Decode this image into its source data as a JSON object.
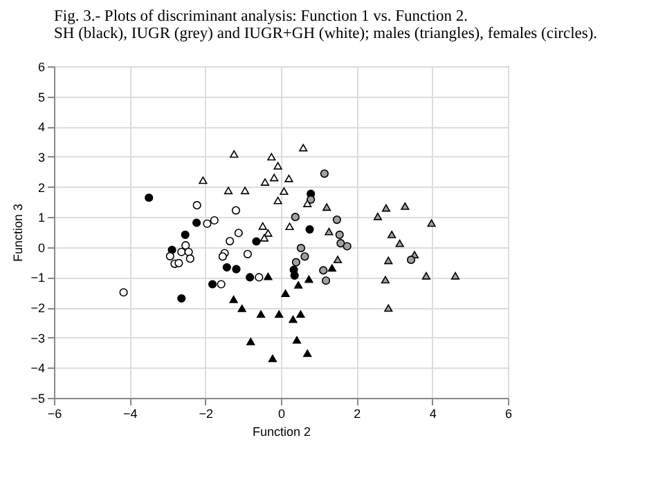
{
  "chart_data": {
    "type": "scatter",
    "title": "Fig. 3.- Plots of discriminant analysis: Function 1 vs. Function 2.",
    "subtitle": "SH (black), IUGR (grey) and IUGR+GH (white); males (triangles), females (circles).",
    "xlabel": "Function 2",
    "ylabel": "Function 3",
    "xlim": [
      -6,
      6
    ],
    "xticks": [
      -6,
      -4,
      -2,
      0,
      2,
      4,
      6
    ],
    "ylim": [
      -5,
      6
    ],
    "yticks": [
      -5,
      -4,
      -3,
      -2,
      -1,
      0,
      1,
      2,
      3,
      4,
      5,
      6
    ],
    "grid": true,
    "series": [
      {
        "color": "#000000",
        "marker": "triangle",
        "x": [
          -0.34,
          -1.25,
          -1.03,
          -0.53,
          -0.05,
          0.32,
          -0.8,
          -0.22,
          0.12,
          0.46,
          0.74,
          1.35,
          0.52,
          0.42,
          0.7
        ],
        "values": [
          -0.97,
          -1.73,
          -2.03,
          -2.22,
          -2.22,
          -2.39,
          -3.13,
          -3.69,
          -1.53,
          -1.25,
          -1.06,
          -0.69,
          -2.22,
          -3.08,
          -3.52
        ]
      },
      {
        "color": "#000000",
        "marker": "circle",
        "x": [
          -3.49,
          -2.23,
          -2.53,
          -2.88,
          -2.63,
          -1.43,
          -1.18,
          -1.81,
          -0.82,
          -0.65,
          0.34,
          0.36,
          0.79,
          0.76
        ],
        "values": [
          1.64,
          0.81,
          0.41,
          -0.09,
          -1.7,
          -0.67,
          -0.73,
          -1.23,
          -1.0,
          0.19,
          -0.75,
          -0.94,
          1.77,
          0.59
        ]
      },
      {
        "color": "#a0a0a0",
        "marker": "triangle",
        "x": [
          2.56,
          2.78,
          3.28,
          3.98,
          2.93,
          3.14,
          2.84,
          3.53,
          2.76,
          3.84,
          4.61,
          2.84,
          1.21,
          1.27,
          1.5
        ],
        "values": [
          1.02,
          1.3,
          1.36,
          0.8,
          0.42,
          0.13,
          -0.44,
          -0.25,
          -1.08,
          -0.95,
          -0.95,
          -2.02,
          1.33,
          0.52,
          -0.41
        ]
      },
      {
        "color": "#a0a0a0",
        "marker": "circle",
        "x": [
          1.15,
          0.79,
          0.38,
          1.48,
          1.55,
          1.58,
          1.75,
          0.53,
          0.63,
          0.4,
          1.12,
          1.19,
          3.44
        ],
        "values": [
          2.44,
          1.58,
          1.0,
          0.91,
          0.41,
          0.13,
          0.03,
          -0.03,
          -0.31,
          -0.5,
          -0.77,
          -1.11,
          -0.42
        ]
      },
      {
        "color": "#ffffff",
        "marker": "triangle",
        "x": [
          -1.24,
          -0.25,
          -0.08,
          -2.06,
          -1.39,
          -0.95,
          -0.42,
          -0.18,
          0.21,
          0.08,
          -0.08,
          -0.48,
          -0.34,
          -0.44,
          0.59,
          0.23,
          0.7
        ],
        "values": [
          3.09,
          3.0,
          2.7,
          2.22,
          1.88,
          1.88,
          2.16,
          2.31,
          2.28,
          1.86,
          1.55,
          0.7,
          0.47,
          0.31,
          3.3,
          0.69,
          1.45
        ]
      },
      {
        "color": "#ffffff",
        "marker": "circle",
        "x": [
          -4.16,
          -2.22,
          -1.95,
          -1.76,
          -1.19,
          -1.12,
          -2.93,
          -2.81,
          -2.7,
          -2.63,
          -2.52,
          -2.44,
          -2.4,
          -1.49,
          -1.54,
          -1.35,
          -0.88,
          -0.58,
          -1.58
        ],
        "values": [
          -1.5,
          1.39,
          0.78,
          0.89,
          1.22,
          0.47,
          -0.3,
          -0.55,
          -0.53,
          -0.16,
          0.06,
          -0.16,
          -0.38,
          -0.2,
          -0.31,
          0.2,
          -0.23,
          -1.0,
          -1.23
        ]
      }
    ]
  }
}
